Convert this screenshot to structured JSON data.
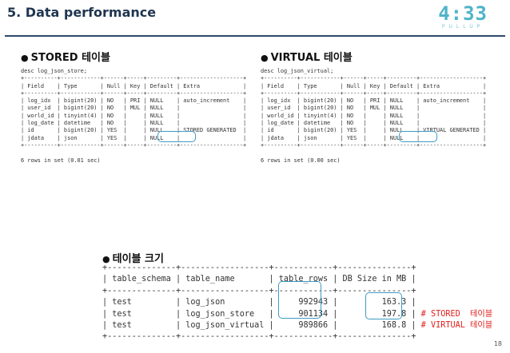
{
  "page": {
    "title": "5. Data performance",
    "logo_digits": "4:33",
    "logo_sub": "PULLUP",
    "page_number": "18"
  },
  "stored": {
    "heading": "STORED 테이블",
    "command": "desc log_json_store;",
    "columns": [
      "Field",
      "Type",
      "Null",
      "Key",
      "Default",
      "Extra"
    ],
    "rows": [
      [
        "log_idx",
        "bigint(20)",
        "NO",
        "PRI",
        "NULL",
        "auto_increment"
      ],
      [
        "user_id",
        "bigint(20)",
        "NO",
        "MUL",
        "NULL",
        ""
      ],
      [
        "world_id",
        "tinyint(4)",
        "NO",
        "",
        "NULL",
        ""
      ],
      [
        "log_date",
        "datetime",
        "NO",
        "",
        "NULL",
        ""
      ],
      [
        "id",
        "bigint(20)",
        "YES",
        "",
        "NULL",
        "STORED GENERATED"
      ],
      [
        "jdata",
        "json",
        "YES",
        "",
        "NULL",
        ""
      ]
    ],
    "footer": "6 rows in set (0.01 sec)"
  },
  "virtual": {
    "heading": "VIRTUAL 테이블",
    "command": "desc log_json_virtual;",
    "columns": [
      "Field",
      "Type",
      "Null",
      "Key",
      "Default",
      "Extra"
    ],
    "rows": [
      [
        "log_idx",
        "bigint(20)",
        "NO",
        "PRI",
        "NULL",
        "auto_increment"
      ],
      [
        "user_id",
        "bigint(20)",
        "NO",
        "MUL",
        "NULL",
        ""
      ],
      [
        "world_id",
        "tinyint(4)",
        "NO",
        "",
        "NULL",
        ""
      ],
      [
        "log_date",
        "datetime",
        "NO",
        "",
        "NULL",
        ""
      ],
      [
        "id",
        "bigint(20)",
        "YES",
        "",
        "NULL",
        "VIRTUAL GENERATED"
      ],
      [
        "jdata",
        "json",
        "YES",
        "",
        "NULL",
        ""
      ]
    ],
    "footer": "6 rows in set (0.00 sec)"
  },
  "size": {
    "heading": "테이블 크기",
    "columns": [
      "table_schema",
      "table_name",
      "table_rows",
      "DB Size in MB"
    ],
    "rows": [
      [
        "test",
        "log_json",
        "992943",
        "163.3",
        ""
      ],
      [
        "test",
        "log_json_store",
        "901134",
        "197.8",
        "# STORED  테이블"
      ],
      [
        "test",
        "log_json_virtual",
        "989866",
        "168.8",
        "# VIRTUAL 테이블"
      ]
    ]
  }
}
